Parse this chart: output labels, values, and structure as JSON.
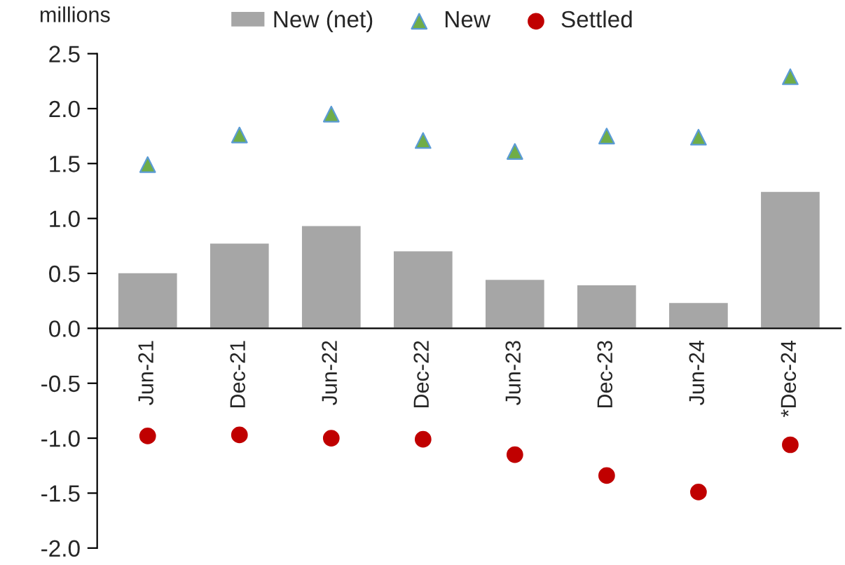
{
  "chart_data": {
    "type": "bar",
    "ylabel": "millions",
    "categories": [
      "Jun-21",
      "Dec-21",
      "Jun-22",
      "Dec-22",
      "Jun-23",
      "Dec-23",
      "Jun-24",
      "*Dec-24"
    ],
    "series": [
      {
        "name": "New (net)",
        "color": "#a6a6a6",
        "values": [
          0.51,
          0.78,
          0.94,
          0.71,
          0.45,
          0.4,
          0.24,
          1.25
        ]
      },
      {
        "name": "New",
        "type": "scatter",
        "marker": "triangle",
        "color": "#70ad47",
        "values": [
          1.49,
          1.76,
          1.95,
          1.71,
          1.61,
          1.75,
          1.74,
          2.29
        ]
      },
      {
        "name": "Settled",
        "type": "scatter",
        "marker": "circle",
        "color": "#c00000",
        "values": [
          -0.98,
          -0.97,
          -1.0,
          -1.01,
          -1.15,
          -1.34,
          -1.49,
          -1.06
        ]
      }
    ],
    "ylim": [
      -2.0,
      2.5
    ],
    "yticks": [
      {
        "value": -2.0,
        "label": "-2.0"
      },
      {
        "value": -1.5,
        "label": "-1.5"
      },
      {
        "value": -1.0,
        "label": "-1.0"
      },
      {
        "value": -0.5,
        "label": "-0.5"
      },
      {
        "value": 0.0,
        "label": "0.0"
      },
      {
        "value": 0.5,
        "label": "0.5"
      },
      {
        "value": 1.0,
        "label": "1.0"
      },
      {
        "value": 1.5,
        "label": "1.5"
      },
      {
        "value": 2.0,
        "label": "2.0"
      },
      {
        "value": 2.5,
        "label": "2.5"
      }
    ],
    "grid": false,
    "legend": "top"
  }
}
